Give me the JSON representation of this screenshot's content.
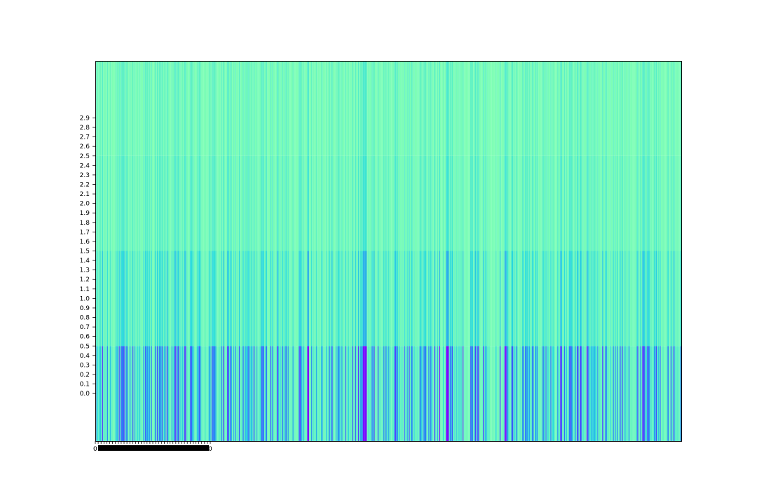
{
  "chart_data": {
    "type": "heatmap",
    "title": "",
    "xlabel": "",
    "ylabel": "",
    "colormap": "rainbow",
    "cmap_stops": [
      "#8000ff",
      "#2b72f9",
      "#2adcdc",
      "#80ffb4"
    ],
    "rows": 4,
    "columns": 600,
    "row_edges": [
      -0.5,
      0.5,
      1.5,
      2.5,
      3.5
    ],
    "ylim": [
      -0.5,
      3.5
    ],
    "yticks": [
      0.0,
      0.1,
      0.2,
      0.3,
      0.4,
      0.5,
      0.6,
      0.7,
      0.8,
      0.9,
      1.0,
      1.1,
      1.2,
      1.3,
      1.4,
      1.5,
      1.6,
      1.7,
      1.8,
      1.9,
      2.0,
      2.1,
      2.2,
      2.3,
      2.4,
      2.5,
      2.6,
      2.7,
      2.8,
      2.9
    ],
    "ytick_labels": [
      "0.0",
      "0.1",
      "0.2",
      "0.3",
      "0.4",
      "0.5",
      "0.6",
      "0.7",
      "0.8",
      "0.9",
      "1.0",
      "1.1",
      "1.2",
      "1.3",
      "1.4",
      "1.5",
      "1.6",
      "1.7",
      "1.8",
      "1.9",
      "2.0",
      "2.1",
      "2.2",
      "2.3",
      "2.4",
      "2.5",
      "2.6",
      "2.7",
      "2.8",
      "2.9"
    ],
    "xtick_labels_first": "0",
    "xtick_labels_last": "0",
    "row_values_summary": {
      "row_0": "mostly 0.25–0.40 (blue/cyan), dips to ~0.02–0.08 (violet) at strong columns",
      "row_1": "mostly 0.55–0.80 (cyan/teal)",
      "row_2": "mostly 0.80–0.95 (light green)",
      "row_3": "mostly 0.85–1.00 (mint green)"
    },
    "strong_columns": [
      217,
      218,
      274,
      275,
      276,
      277,
      352,
      359,
      360,
      361,
      419,
      420,
      503
    ]
  }
}
